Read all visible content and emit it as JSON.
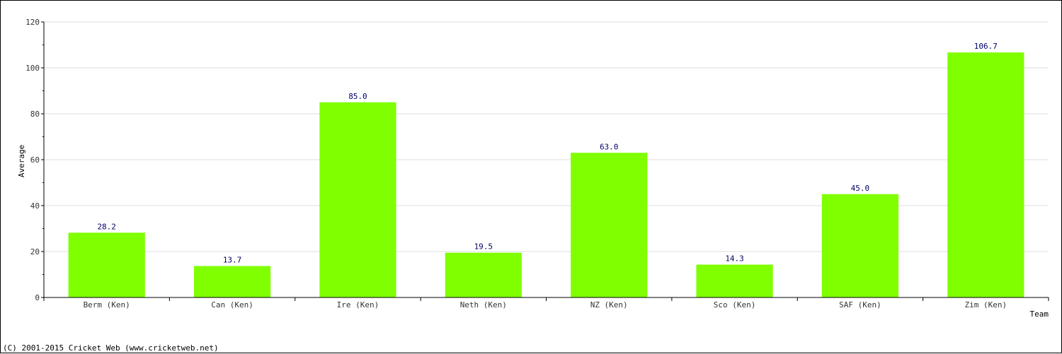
{
  "chart_data": {
    "type": "bar",
    "categories": [
      "Berm (Ken)",
      "Can (Ken)",
      "Ire (Ken)",
      "Neth (Ken)",
      "NZ (Ken)",
      "Sco (Ken)",
      "SAF (Ken)",
      "Zim (Ken)"
    ],
    "values": [
      28.2,
      13.7,
      85.0,
      19.5,
      63.0,
      14.3,
      45.0,
      106.7
    ],
    "value_labels": [
      "28.2",
      "13.7",
      "85.0",
      "19.5",
      "63.0",
      "14.3",
      "45.0",
      "106.7"
    ],
    "xlabel": "Team",
    "ylabel": "Average",
    "ylim": [
      0,
      120
    ],
    "yticks": [
      0,
      20,
      40,
      60,
      80,
      100,
      120
    ],
    "grid": true,
    "bar_color": "#7fff00",
    "grid_color": "#dddddd",
    "label_color": "#000066"
  },
  "footer": {
    "copyright": "(C) 2001-2015 Cricket Web (www.cricketweb.net)"
  }
}
